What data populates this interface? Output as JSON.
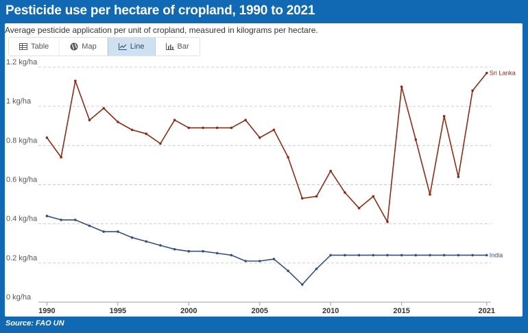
{
  "header": {
    "title": "Pesticide use per hectare of cropland, 1990 to 2021",
    "subtitle": "Average pesticide application per unit of cropland, measured in kilograms per hectare."
  },
  "tabs": [
    {
      "label": "Table",
      "icon": "table-icon",
      "active": false
    },
    {
      "label": "Map",
      "icon": "globe-icon",
      "active": false
    },
    {
      "label": "Line",
      "icon": "line-chart-icon",
      "active": true
    },
    {
      "label": "Bar",
      "icon": "bar-chart-icon",
      "active": false
    }
  ],
  "footer": {
    "source": "Source: FAO UN"
  },
  "colors": {
    "frame": "#1269b3",
    "sri_lanka": "#8b2a16",
    "india": "#34507c",
    "grid": "#cccccc"
  },
  "chart_data": {
    "type": "line",
    "title": "Pesticide use per hectare of cropland, 1990 to 2021",
    "subtitle": "Average pesticide application per unit of cropland, measured in kilograms per hectare.",
    "xlabel": "",
    "ylabel": "",
    "x": [
      1990,
      1991,
      1992,
      1993,
      1994,
      1995,
      1996,
      1997,
      1998,
      1999,
      2000,
      2001,
      2002,
      2003,
      2004,
      2005,
      2006,
      2007,
      2008,
      2009,
      2010,
      2011,
      2012,
      2013,
      2014,
      2015,
      2016,
      2017,
      2018,
      2019,
      2020,
      2021
    ],
    "xlim": [
      1989.4,
      2021.3
    ],
    "ylim": [
      0,
      1.2
    ],
    "x_ticks": [
      {
        "value": 1990,
        "label": "1990"
      },
      {
        "value": 1995,
        "label": "1995"
      },
      {
        "value": 2000,
        "label": "2000"
      },
      {
        "value": 2005,
        "label": "2005"
      },
      {
        "value": 2010,
        "label": "2010"
      },
      {
        "value": 2015,
        "label": "2015"
      },
      {
        "value": 2021,
        "label": "2021"
      }
    ],
    "y_ticks": [
      {
        "value": 0,
        "label": "0 kg/ha"
      },
      {
        "value": 0.2,
        "label": "0.2 kg/ha"
      },
      {
        "value": 0.4,
        "label": "0.4 kg/ha"
      },
      {
        "value": 0.6,
        "label": "0.6 kg/ha"
      },
      {
        "value": 0.8,
        "label": "0.8 kg/ha"
      },
      {
        "value": 1.0,
        "label": "1 kg/ha"
      },
      {
        "value": 1.2,
        "label": "1.2 kg/ha"
      }
    ],
    "grid": true,
    "series": [
      {
        "name": "Sri Lanka",
        "color": "#8b2a16",
        "values": [
          0.84,
          0.74,
          1.13,
          0.93,
          0.99,
          0.92,
          0.88,
          0.86,
          0.81,
          0.93,
          0.89,
          0.89,
          0.89,
          0.89,
          0.93,
          0.84,
          0.88,
          0.74,
          0.53,
          0.54,
          0.67,
          0.56,
          0.48,
          0.54,
          0.41,
          1.1,
          0.83,
          0.55,
          0.95,
          0.64,
          1.08,
          1.17
        ]
      },
      {
        "name": "India",
        "color": "#34507c",
        "values": [
          0.44,
          0.42,
          0.42,
          0.39,
          0.36,
          0.36,
          0.33,
          0.31,
          0.29,
          0.27,
          0.26,
          0.26,
          0.25,
          0.24,
          0.21,
          0.21,
          0.22,
          0.16,
          0.09,
          0.17,
          0.24,
          0.24,
          0.24,
          0.24,
          0.24,
          0.24,
          0.24,
          0.24,
          0.24,
          0.24,
          0.24,
          0.24
        ]
      }
    ]
  }
}
